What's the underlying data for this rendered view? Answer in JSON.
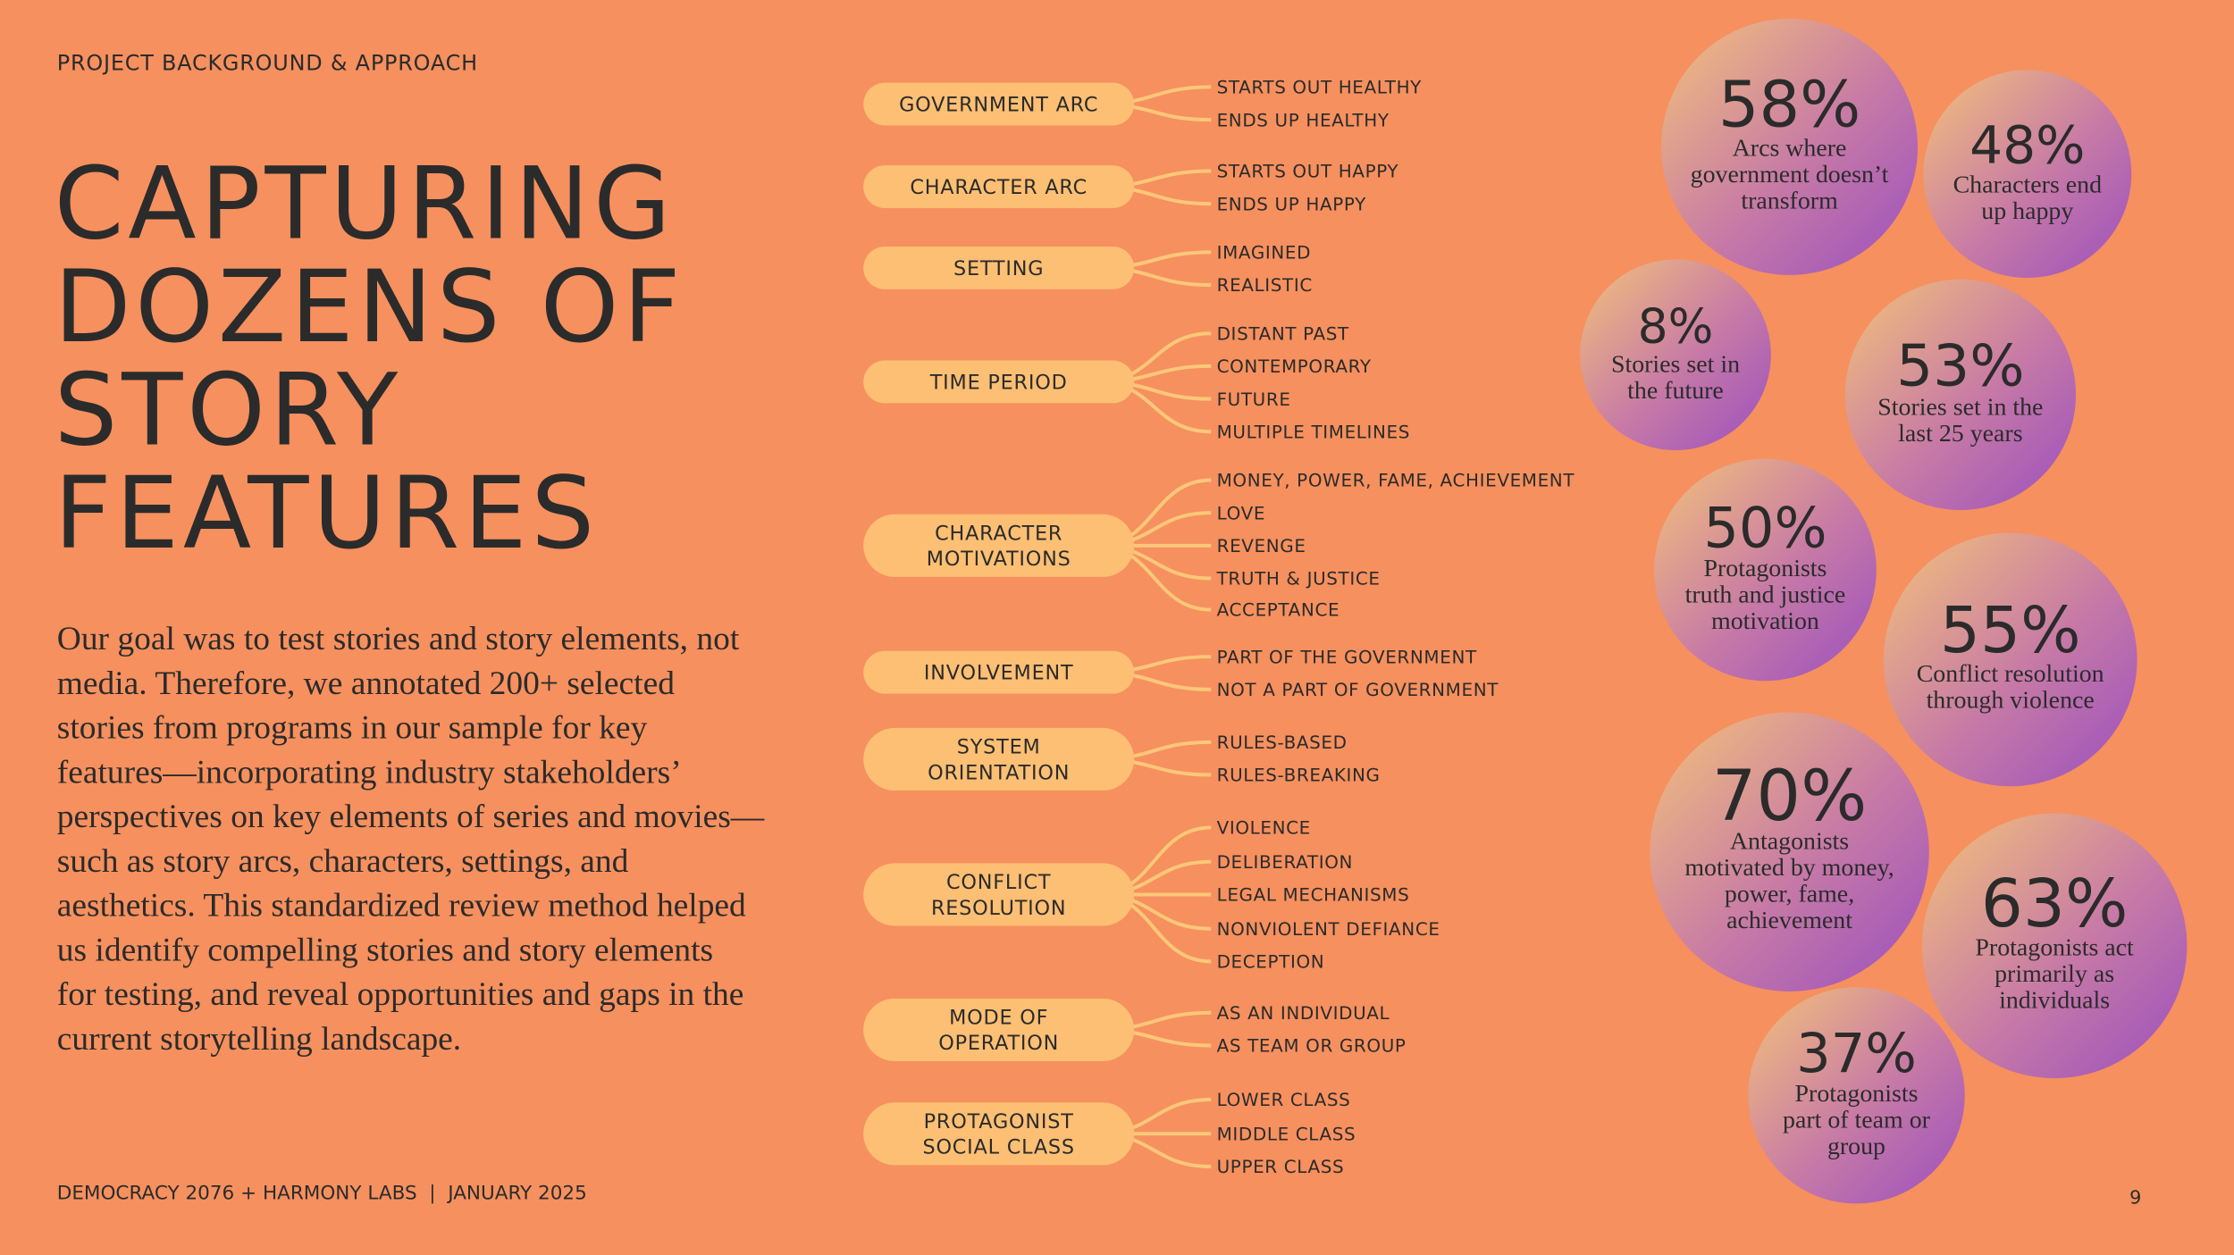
{
  "header": "PROJECT BACKGROUND & APPROACH",
  "title": [
    "CAPTURING",
    "DOZENS OF",
    "STORY",
    "FEATURES"
  ],
  "body": [
    "Our goal was to test stories and story elements, not",
    "media. Therefore, we annotated 200+ selected",
    "stories from programs in our sample for key",
    "features—incorporating industry stakeholders’",
    "perspectives on key elements of series and movies—",
    "such as story arcs, characters, settings, and",
    "aesthetics. This standardized review method helped",
    "us identify compelling stories and story elements",
    "for testing, and reveal opportunities and gaps in the",
    "current storytelling landscape."
  ],
  "footer": "DEMOCRACY 2076 + HARMONY LABS  |  JANUARY 2025",
  "page_number": "9",
  "features": [
    {
      "label": [
        "GOVERNMENT ARC"
      ],
      "options": [
        "STARTS OUT HEALTHY",
        "ENDS UP HEALTHY"
      ]
    },
    {
      "label": [
        "CHARACTER ARC"
      ],
      "options": [
        "STARTS OUT HAPPY",
        "ENDS UP HAPPY"
      ]
    },
    {
      "label": [
        "SETTING"
      ],
      "options": [
        "IMAGINED",
        "REALISTIC"
      ]
    },
    {
      "label": [
        "TIME PERIOD"
      ],
      "options": [
        "DISTANT PAST",
        "CONTEMPORARY",
        "FUTURE",
        "MULTIPLE TIMELINES"
      ]
    },
    {
      "label": [
        "CHARACTER",
        "MOTIVATIONS"
      ],
      "options": [
        "MONEY, POWER, FAME, ACHIEVEMENT",
        "LOVE",
        "REVENGE",
        "TRUTH & JUSTICE",
        "ACCEPTANCE"
      ]
    },
    {
      "label": [
        "INVOLVEMENT"
      ],
      "options": [
        "PART OF THE GOVERNMENT",
        "NOT A PART OF GOVERNMENT"
      ]
    },
    {
      "label": [
        "SYSTEM",
        "ORIENTATION"
      ],
      "options": [
        "RULES-BASED",
        "RULES-BREAKING"
      ]
    },
    {
      "label": [
        "CONFLICT",
        "RESOLUTION"
      ],
      "options": [
        "VIOLENCE",
        "DELIBERATION",
        "LEGAL MECHANISMS",
        "NONVIOLENT DEFIANCE",
        "DECEPTION"
      ]
    },
    {
      "label": [
        "MODE OF",
        "OPERATION"
      ],
      "options": [
        "AS AN INDIVIDUAL",
        "AS TEAM OR GROUP"
      ]
    },
    {
      "label": [
        "PROTAGONIST",
        "SOCIAL CLASS"
      ],
      "options": [
        "LOWER CLASS",
        "MIDDLE CLASS",
        "UPPER CLASS"
      ]
    }
  ],
  "stats": [
    {
      "value": "58%",
      "caption": [
        "Arcs where",
        "government doesn’t",
        "transform"
      ]
    },
    {
      "value": "48%",
      "caption": [
        "Characters end",
        "up happy"
      ]
    },
    {
      "value": "8%",
      "caption": [
        "Stories set in",
        "the future"
      ]
    },
    {
      "value": "53%",
      "caption": [
        "Stories set in the",
        "last 25 years"
      ]
    },
    {
      "value": "50%",
      "caption": [
        "Protagonists",
        "truth and justice",
        "motivation"
      ]
    },
    {
      "value": "55%",
      "caption": [
        "Conflict resolution",
        "through violence"
      ]
    },
    {
      "value": "70%",
      "caption": [
        "Antagonists",
        "motivated by money,",
        "power, fame,",
        "achievement"
      ]
    },
    {
      "value": "63%",
      "caption": [
        "Protagonists act",
        "primarily as",
        "individuals"
      ]
    },
    {
      "value": "37%",
      "caption": [
        "Protagonists",
        "part of team or",
        "group"
      ]
    }
  ]
}
